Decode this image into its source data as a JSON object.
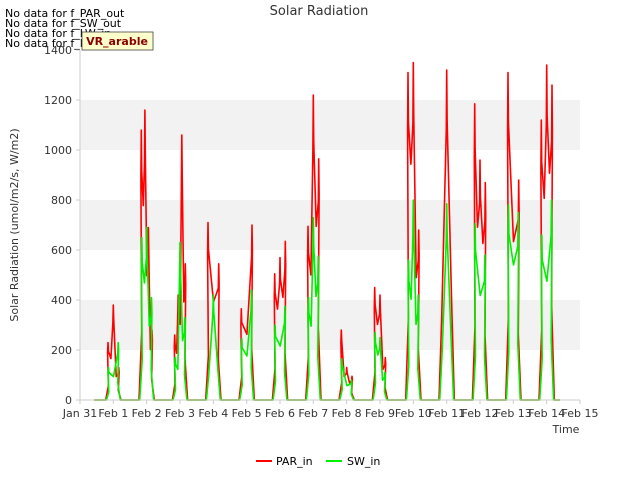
{
  "notes": [
    "No data for f_PAR_out",
    "No data for f_SW_out",
    "No data for f_LW_in",
    "No data for f_LW_out"
  ],
  "badge": "VR_arable",
  "chart_data": {
    "type": "line",
    "title": "Solar Radiation",
    "xlabel": "Time",
    "ylabel": "Solar Radiation (umol/m2/s, W/m2)",
    "ylim": [
      0,
      1400
    ],
    "yticks": [
      0,
      200,
      400,
      600,
      800,
      1000,
      1200,
      1400
    ],
    "xlim": [
      0,
      15
    ],
    "xtick_labels": [
      "Jan 31",
      "Feb 1",
      "Feb 2",
      "Feb 3",
      "Feb 4",
      "Feb 5",
      "Feb 6",
      "Feb 7",
      "Feb 8",
      "Feb 9",
      "Feb 10",
      "Feb 11",
      "Feb 12",
      "Feb 13",
      "Feb 14",
      "Feb 15"
    ],
    "grid": "horizontal bands",
    "legend_position": "bottom-center",
    "series": [
      {
        "name": "PAR_in",
        "color": "#ff0000",
        "daily_peaks": [
          {
            "day": 1,
            "values": [
              230,
              380,
              130
            ]
          },
          {
            "day": 2,
            "values": [
              1080,
              1160,
              690,
              280
            ]
          },
          {
            "day": 3,
            "values": [
              260,
              420,
              1060,
              545
            ]
          },
          {
            "day": 4,
            "values": [
              710,
              545
            ]
          },
          {
            "day": 5,
            "values": [
              365,
              700
            ]
          },
          {
            "day": 6,
            "values": [
              505,
              570,
              635
            ]
          },
          {
            "day": 7,
            "values": [
              695,
              1220,
              965
            ]
          },
          {
            "day": 8,
            "values": [
              280,
              130,
              95
            ]
          },
          {
            "day": 9,
            "values": [
              450,
              420,
              170
            ]
          },
          {
            "day": 10,
            "values": [
              1310,
              1350,
              680
            ]
          },
          {
            "day": 11,
            "values": [
              1320
            ]
          },
          {
            "day": 12,
            "values": [
              1185,
              960,
              870
            ]
          },
          {
            "day": 13,
            "values": [
              1310,
              880
            ]
          },
          {
            "day": 14,
            "values": [
              1120,
              1340,
              1260
            ]
          }
        ]
      },
      {
        "name": "SW_in",
        "color": "#00ee00",
        "daily_peaks": [
          {
            "day": 1,
            "values": [
              130,
              230
            ]
          },
          {
            "day": 2,
            "values": [
              650,
              690,
              410
            ]
          },
          {
            "day": 3,
            "values": [
              170,
              630,
              330
            ]
          },
          {
            "day": 4,
            "values": [
              420
            ]
          },
          {
            "day": 5,
            "values": [
              245,
              440
            ]
          },
          {
            "day": 6,
            "values": [
              300,
              375
            ]
          },
          {
            "day": 7,
            "values": [
              410,
              730,
              575
            ]
          },
          {
            "day": 8,
            "values": [
              165,
              80
            ]
          },
          {
            "day": 9,
            "values": [
              270,
              250,
              110
            ]
          },
          {
            "day": 10,
            "values": [
              560,
              800,
              420
            ]
          },
          {
            "day": 11,
            "values": [
              785
            ]
          },
          {
            "day": 12,
            "values": [
              705,
              580
            ]
          },
          {
            "day": 13,
            "values": [
              780,
              750
            ]
          },
          {
            "day": 14,
            "values": [
              660,
              800
            ]
          }
        ]
      }
    ]
  }
}
